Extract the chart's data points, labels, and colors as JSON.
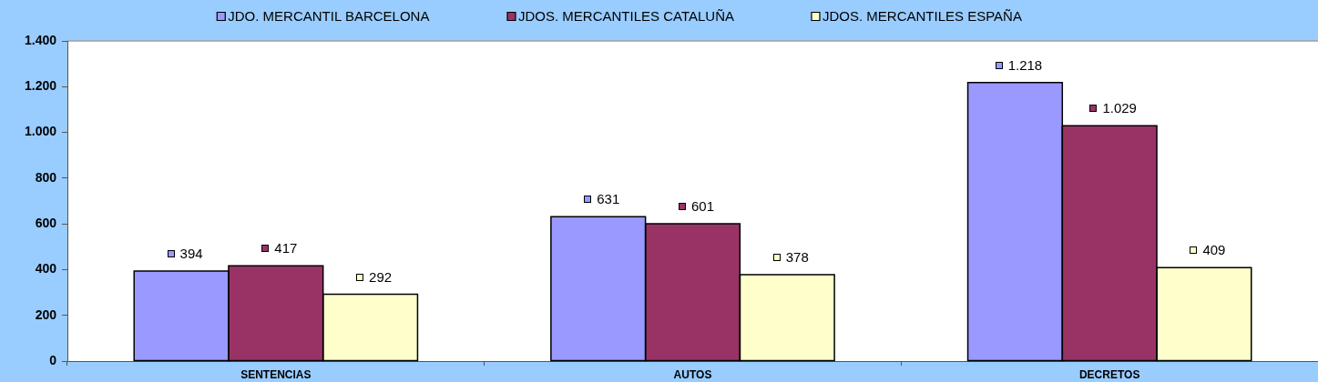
{
  "chart_data": {
    "type": "bar",
    "categories": [
      "SENTENCIAS",
      "AUTOS",
      "DECRETOS"
    ],
    "series": [
      {
        "name": "JDO. MERCANTIL BARCELONA",
        "color": "#9999ff",
        "values": [
          394,
          631,
          1218
        ],
        "value_labels": [
          "394",
          "631",
          "1.218"
        ]
      },
      {
        "name": "JDOS. MERCANTILES CATALUÑA",
        "color": "#993366",
        "values": [
          417,
          601,
          1029
        ],
        "value_labels": [
          "417",
          "601",
          "1.029"
        ]
      },
      {
        "name": "JDOS. MERCANTILES ESPAÑA",
        "color": "#ffffcc",
        "values": [
          292,
          378,
          409
        ],
        "value_labels": [
          "292",
          "378",
          "409"
        ]
      }
    ],
    "ylim": [
      0,
      1400
    ],
    "yticks": [
      0,
      200,
      400,
      600,
      800,
      {
        "value": 1000,
        "label": "1.000"
      },
      {
        "value": 1200,
        "label": "1.200"
      },
      {
        "value": 1400,
        "label": "1.400"
      }
    ],
    "legend": "top"
  }
}
